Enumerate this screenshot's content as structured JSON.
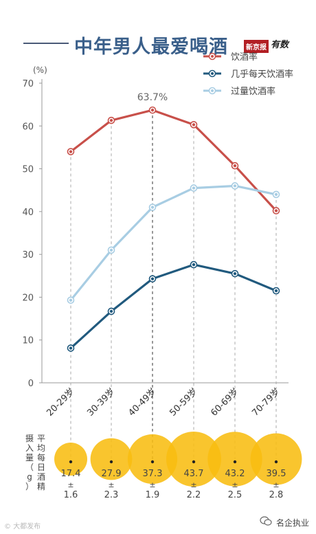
{
  "header": {
    "title": "中年男人最爱喝酒",
    "brand_box": "新京报",
    "brand_tail": "有数"
  },
  "watermarks": {
    "left": "© 大都发布",
    "right": "名企执业"
  },
  "chart_data": {
    "type": "line",
    "title": "中年男人最爱喝酒",
    "ylabel": "(%)",
    "ylim": [
      0,
      70
    ],
    "yticks": [
      0,
      10,
      20,
      30,
      40,
      50,
      60,
      70
    ],
    "grid": false,
    "legend_position": "top-right",
    "categories": [
      "20-29岁",
      "30-39岁",
      "40-49岁",
      "50-59岁",
      "60-69岁",
      "70-79岁"
    ],
    "series": [
      {
        "name": "饮酒率",
        "color": "#c8504a",
        "values": [
          54.0,
          61.3,
          63.7,
          60.3,
          50.7,
          40.2
        ]
      },
      {
        "name": "几乎每天饮酒率",
        "color": "#215a7e",
        "values": [
          8.1,
          16.7,
          24.3,
          27.6,
          25.5,
          21.5
        ]
      },
      {
        "name": "过量饮酒率",
        "color": "#a8cde3",
        "values": [
          19.3,
          31.0,
          41.0,
          45.5,
          46.0,
          44.0
        ]
      }
    ],
    "annotations": [
      {
        "category": "40-49岁",
        "series": "饮酒率",
        "text": "63.7%"
      }
    ],
    "intake": {
      "label": "平均每日酒精摄入量（g）",
      "label_lines": [
        "平均每日酒精",
        "摄入量（g）"
      ],
      "color": "#f8bd11",
      "values": [
        17.4,
        27.9,
        37.3,
        43.7,
        43.2,
        39.5
      ],
      "pm_symbol": "±",
      "sd": [
        1.6,
        2.3,
        1.9,
        2.2,
        2.5,
        2.8
      ]
    }
  }
}
